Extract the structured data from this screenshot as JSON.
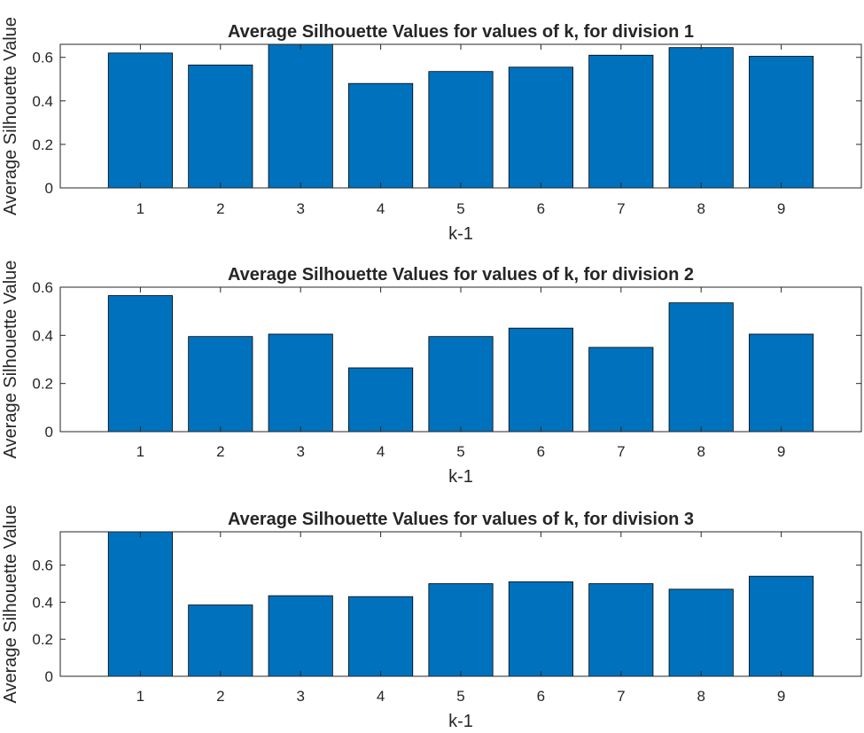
{
  "colors": {
    "bar": "#0072bd",
    "edge": "#000000",
    "axis": "#262626"
  },
  "chart_data": [
    {
      "type": "bar",
      "title": "Average Silhouette Values for values of k, for division 1",
      "xlabel": "k-1",
      "ylabel": "Average Silhouette Value",
      "categories": [
        "1",
        "2",
        "3",
        "4",
        "5",
        "6",
        "7",
        "8",
        "9"
      ],
      "values": [
        0.62,
        0.565,
        0.665,
        0.48,
        0.535,
        0.555,
        0.61,
        0.645,
        0.605
      ],
      "xlim": [
        0,
        10
      ],
      "ylim": [
        0,
        0.66
      ],
      "yticks": [
        0,
        0.2,
        0.4,
        0.6
      ],
      "ytick_labels": [
        "0",
        "0.2",
        "0.4",
        "0.6"
      ],
      "grid": false
    },
    {
      "type": "bar",
      "title": "Average Silhouette Values for values of k, for division 2",
      "xlabel": "k-1",
      "ylabel": "Average Silhouette Value",
      "categories": [
        "1",
        "2",
        "3",
        "4",
        "5",
        "6",
        "7",
        "8",
        "9"
      ],
      "values": [
        0.565,
        0.395,
        0.405,
        0.265,
        0.395,
        0.43,
        0.35,
        0.535,
        0.405
      ],
      "xlim": [
        0,
        10
      ],
      "ylim": [
        0,
        0.6
      ],
      "yticks": [
        0,
        0.2,
        0.4,
        0.6
      ],
      "ytick_labels": [
        "0",
        "0.2",
        "0.4",
        "0.6"
      ],
      "grid": false
    },
    {
      "type": "bar",
      "title": "Average Silhouette Values for values of k, for division 3",
      "xlabel": "k-1",
      "ylabel": "Average Silhouette Value",
      "categories": [
        "1",
        "2",
        "3",
        "4",
        "5",
        "6",
        "7",
        "8",
        "9"
      ],
      "values": [
        0.8,
        0.385,
        0.435,
        0.43,
        0.5,
        0.51,
        0.5,
        0.47,
        0.54
      ],
      "xlim": [
        0,
        10
      ],
      "ylim": [
        0,
        0.78
      ],
      "yticks": [
        0,
        0.2,
        0.4,
        0.6
      ],
      "ytick_labels": [
        "0",
        "0.2",
        "0.4",
        "0.6"
      ],
      "grid": false
    }
  ]
}
